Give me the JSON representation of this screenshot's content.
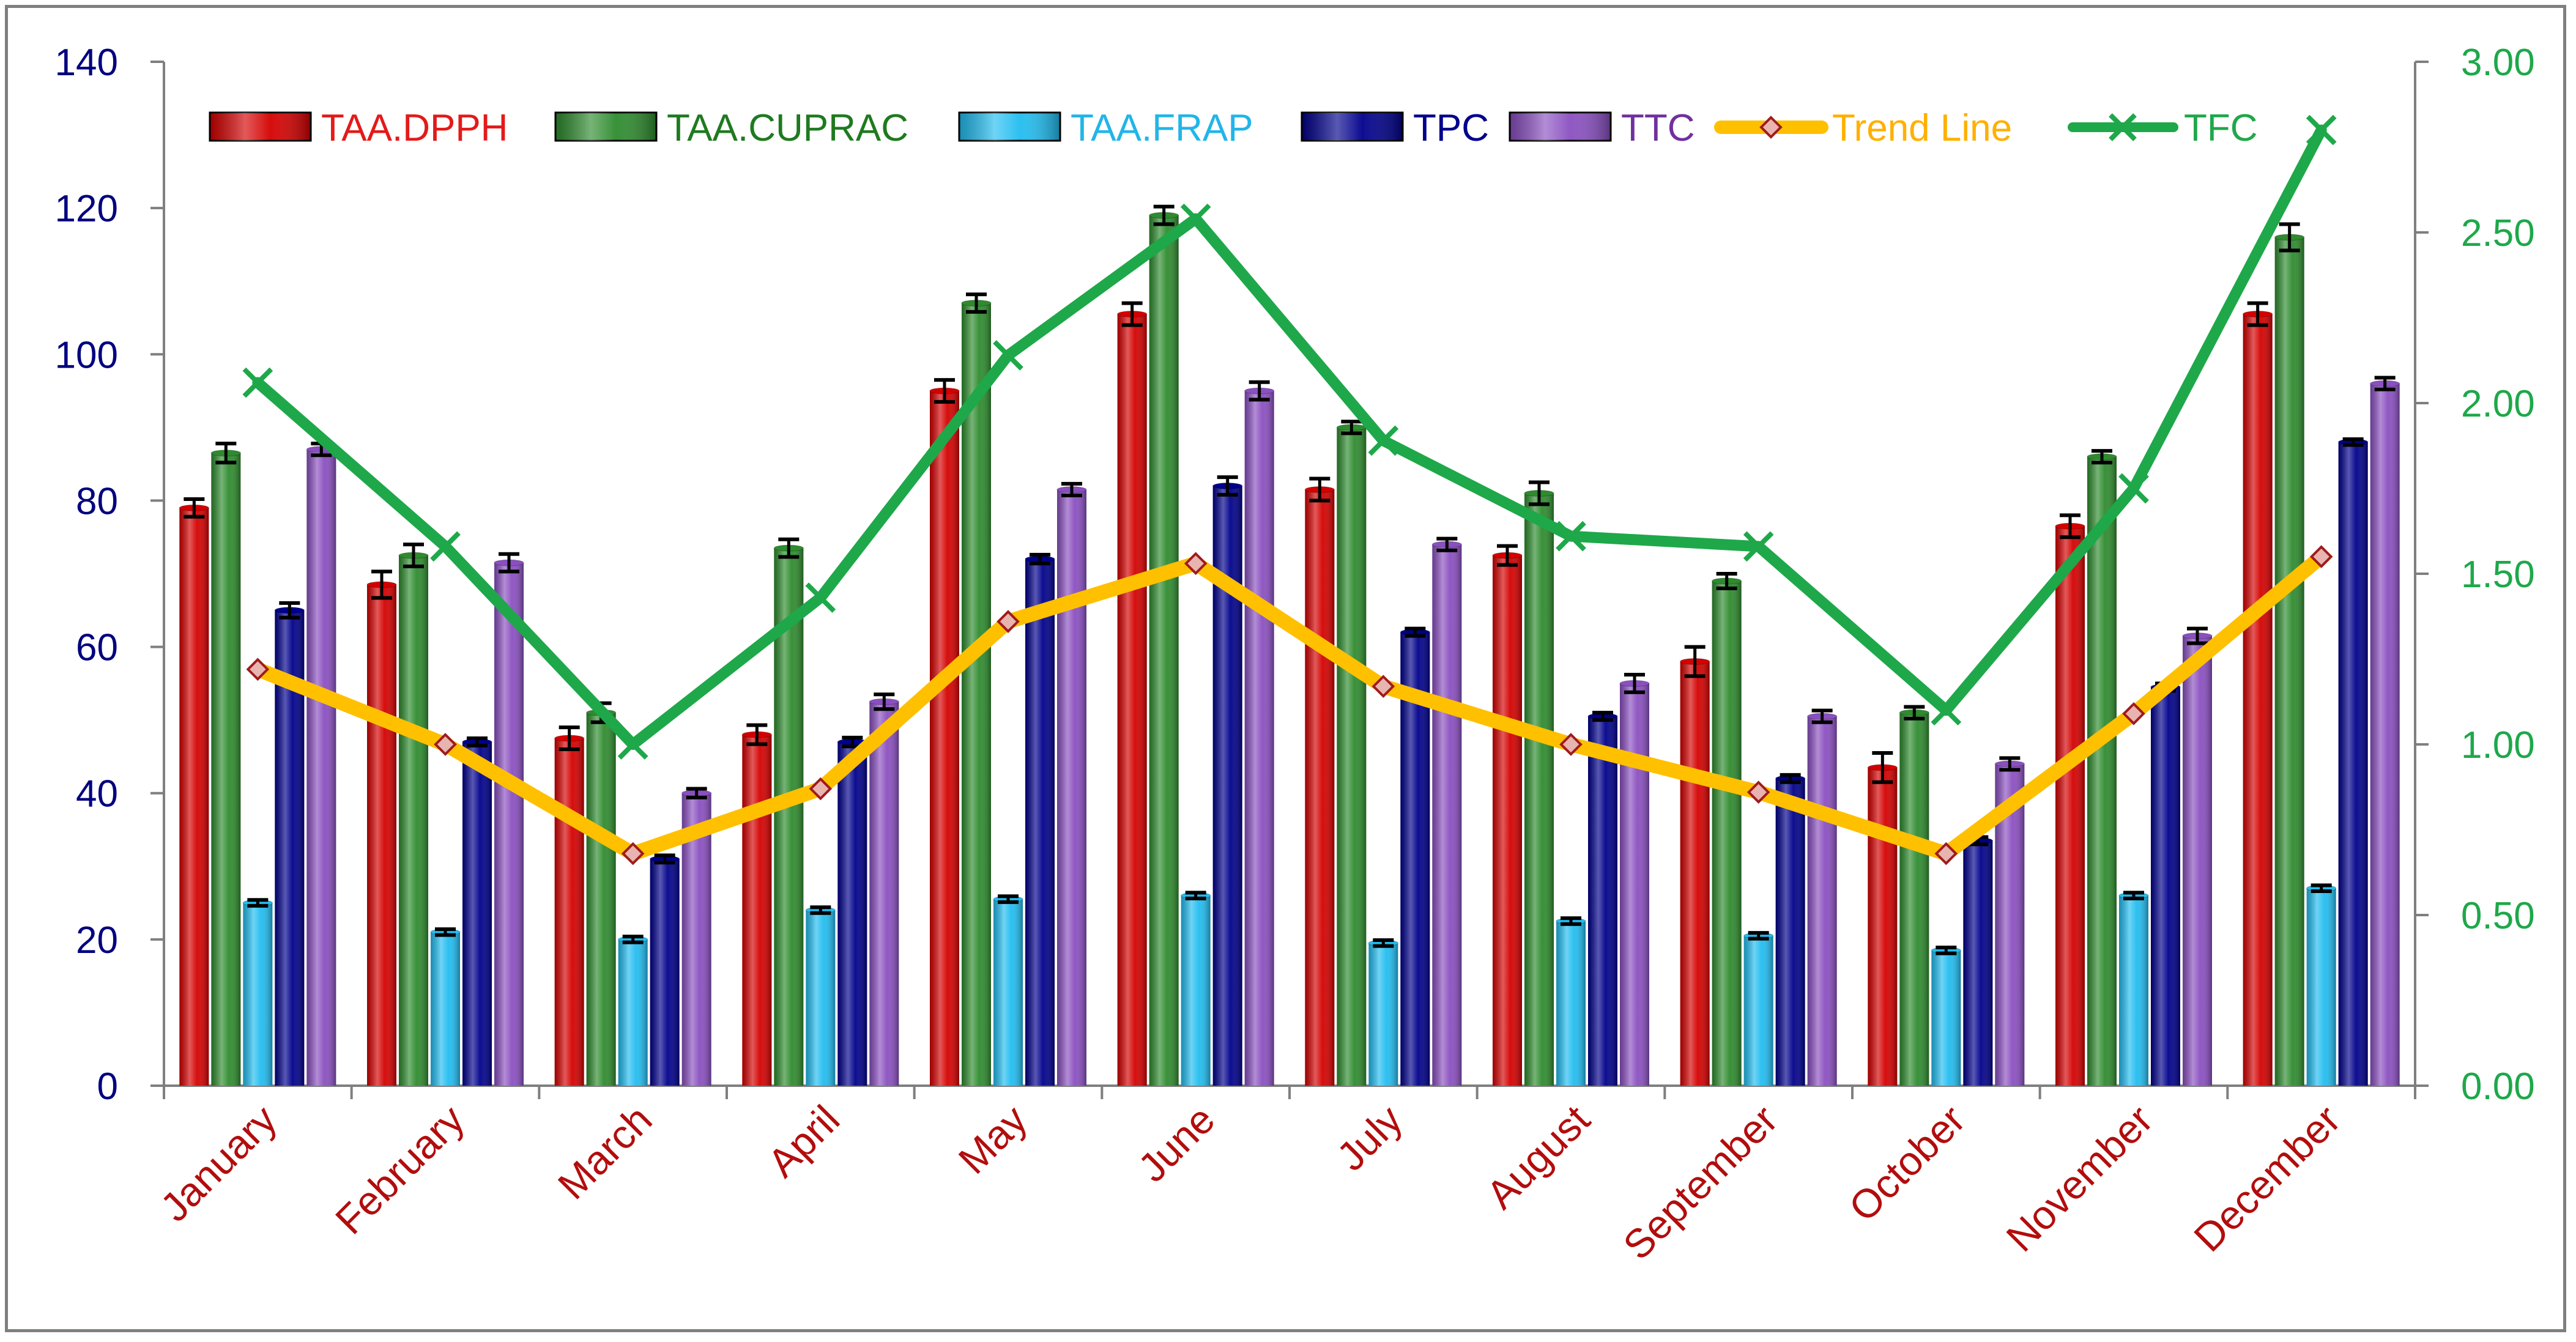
{
  "chart_data": {
    "type": "bar",
    "title": "",
    "xlabel": "",
    "ylabel": "",
    "y2label": "",
    "ylim": [
      0,
      140
    ],
    "yticks": [
      0,
      20,
      40,
      60,
      80,
      100,
      120,
      140
    ],
    "ytick_labels": [
      "0",
      "20",
      "40",
      "60",
      "80",
      "100",
      "120",
      "140"
    ],
    "y2lim": [
      0,
      3
    ],
    "y2ticks": [
      0,
      0.5,
      1,
      1.5,
      2,
      2.5,
      3
    ],
    "y2tick_labels": [
      "0.00",
      "0.50",
      "1.00",
      "1.50",
      "2.00",
      "2.50",
      "3.00"
    ],
    "grid": false,
    "legend_position": "top",
    "categories": [
      "January",
      "February",
      "March",
      "April",
      "May",
      "June",
      "July",
      "August",
      "September",
      "October",
      "November",
      "December"
    ],
    "bar_series": [
      {
        "name": "TAA.DPPH",
        "color": "#d40000",
        "axis": "left",
        "values": [
          79,
          68.5,
          47.5,
          48,
          95,
          105.5,
          81.5,
          72.5,
          58,
          43.5,
          76.5,
          105.5
        ],
        "errors": [
          1.2,
          1.8,
          1.5,
          1.3,
          1.5,
          1.5,
          1.5,
          1.3,
          2,
          2,
          1.5,
          1.5
        ]
      },
      {
        "name": "TAA.CUPRAC",
        "color": "#2e8b2e",
        "axis": "left",
        "values": [
          86.5,
          72.5,
          51,
          73.5,
          107,
          119,
          90,
          81,
          69,
          51,
          86,
          116
        ],
        "errors": [
          1.3,
          1.5,
          1.3,
          1.2,
          1.2,
          1.2,
          0.8,
          1.5,
          1,
          0.8,
          0.8,
          1.8
        ]
      },
      {
        "name": "TAA.FRAP",
        "color": "#22bdf0",
        "axis": "left",
        "values": [
          25,
          21,
          20,
          24,
          25.5,
          26,
          19.5,
          22.5,
          20.5,
          18.5,
          26,
          27
        ],
        "errors": [
          0.4,
          0.4,
          0.4,
          0.4,
          0.4,
          0.4,
          0.4,
          0.4,
          0.4,
          0.4,
          0.4,
          0.4
        ]
      },
      {
        "name": "TPC",
        "color": "#00008b",
        "axis": "left",
        "values": [
          65,
          47,
          31,
          47,
          72,
          82,
          62,
          50.5,
          42,
          33.5,
          54.5,
          88
        ],
        "errors": [
          1,
          0.5,
          0.5,
          0.6,
          0.6,
          1.2,
          0.5,
          0.5,
          0.5,
          0.5,
          0.5,
          0.4
        ]
      },
      {
        "name": "TTC",
        "color": "#8a4fc0",
        "axis": "left",
        "values": [
          87,
          71.5,
          40,
          52.5,
          81.5,
          95,
          74,
          55,
          50.5,
          44,
          61.5,
          96
        ],
        "errors": [
          0.8,
          1.2,
          0.6,
          1,
          0.8,
          1.2,
          0.8,
          1.2,
          0.8,
          0.8,
          1,
          0.8
        ]
      }
    ],
    "line_series": [
      {
        "name": "Trend Line",
        "color": "#ffc000",
        "axis": "right",
        "marker": "diamond",
        "values": [
          1.22,
          1.0,
          0.68,
          0.87,
          1.36,
          1.53,
          1.17,
          1.0,
          0.86,
          0.68,
          1.09,
          1.55
        ]
      },
      {
        "name": "TFC",
        "color": "#1ea84a",
        "axis": "right",
        "marker": "x",
        "values": [
          2.06,
          1.58,
          1.0,
          1.43,
          2.14,
          2.54,
          1.89,
          1.61,
          1.58,
          1.1,
          1.75,
          2.8
        ]
      }
    ],
    "colors": {
      "left_axis_labels": "#00007f",
      "right_axis_labels": "#1ea84a",
      "category_labels": "#b20d0d",
      "legend_text": [
        "#e31a1a",
        "#1f7a1f",
        "#22b5e8",
        "#00008b",
        "#7030a0",
        "#ffb000",
        "#1ea84a"
      ]
    }
  }
}
